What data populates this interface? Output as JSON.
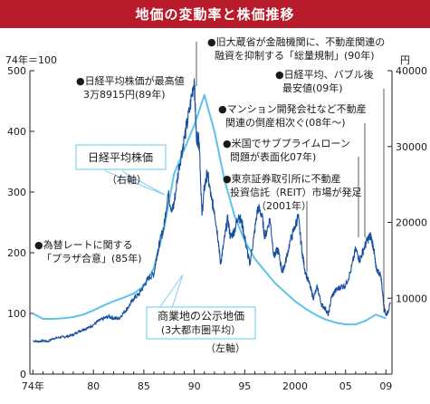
{
  "title": "地価の変動率と株価推移",
  "chart_data": {
    "type": "line",
    "left_axis_label": "74年＝100",
    "right_axis_label": "円",
    "left_ylim": [
      0,
      500
    ],
    "right_ylim": [
      0,
      40000
    ],
    "left_ticks": [
      "0",
      "100",
      "200",
      "300",
      "400",
      "500"
    ],
    "right_ticks": [
      "10000",
      "20000",
      "30000",
      "40000"
    ],
    "x_ticks": [
      "74年",
      "80",
      "85",
      "90",
      "95",
      "2000",
      "05",
      "09"
    ],
    "x_tick_years": [
      1974,
      1980,
      1985,
      1990,
      1995,
      2000,
      2005,
      2009
    ],
    "xlim": [
      1973.7,
      2009.6
    ],
    "series": [
      {
        "name": "日経平均株価",
        "axis": "right",
        "color": "#1a4fa0",
        "points": [
          [
            1974.0,
            4400
          ],
          [
            1974.5,
            4300
          ],
          [
            1975.0,
            4400
          ],
          [
            1975.5,
            4300
          ],
          [
            1976.0,
            4700
          ],
          [
            1976.5,
            4800
          ],
          [
            1977.0,
            4900
          ],
          [
            1977.5,
            5000
          ],
          [
            1978.0,
            5200
          ],
          [
            1978.5,
            5600
          ],
          [
            1979.0,
            5900
          ],
          [
            1979.5,
            6100
          ],
          [
            1980.0,
            6500
          ],
          [
            1980.5,
            7000
          ],
          [
            1981.0,
            7300
          ],
          [
            1981.5,
            7600
          ],
          [
            1982.0,
            7400
          ],
          [
            1982.5,
            7300
          ],
          [
            1983.0,
            8100
          ],
          [
            1983.5,
            8900
          ],
          [
            1984.0,
            10000
          ],
          [
            1984.5,
            10500
          ],
          [
            1985.0,
            11700
          ],
          [
            1985.5,
            12700
          ],
          [
            1986.0,
            13200
          ],
          [
            1986.3,
            15800
          ],
          [
            1986.6,
            17500
          ],
          [
            1987.0,
            19500
          ],
          [
            1987.4,
            23800
          ],
          [
            1987.8,
            21500
          ],
          [
            1988.0,
            22500
          ],
          [
            1988.5,
            27500
          ],
          [
            1989.0,
            31000
          ],
          [
            1989.5,
            34500
          ],
          [
            1989.99,
            38915
          ],
          [
            1990.2,
            31500
          ],
          [
            1990.5,
            30500
          ],
          [
            1990.75,
            21000
          ],
          [
            1991.0,
            24500
          ],
          [
            1991.3,
            26500
          ],
          [
            1991.7,
            23000
          ],
          [
            1992.0,
            21500
          ],
          [
            1992.4,
            17500
          ],
          [
            1992.6,
            14500
          ],
          [
            1992.9,
            17000
          ],
          [
            1993.3,
            20500
          ],
          [
            1993.6,
            18000
          ],
          [
            1994.0,
            19000
          ],
          [
            1994.4,
            21000
          ],
          [
            1994.8,
            19500
          ],
          [
            1995.2,
            16500
          ],
          [
            1995.5,
            14500
          ],
          [
            1995.9,
            18000
          ],
          [
            1996.3,
            22000
          ],
          [
            1996.7,
            21000
          ],
          [
            1997.0,
            18000
          ],
          [
            1997.5,
            20500
          ],
          [
            1997.9,
            15500
          ],
          [
            1998.3,
            16500
          ],
          [
            1998.7,
            13500
          ],
          [
            1999.0,
            14500
          ],
          [
            1999.5,
            17500
          ],
          [
            2000.0,
            19500
          ],
          [
            2000.3,
            20800
          ],
          [
            2000.7,
            16000
          ],
          [
            2001.0,
            13500
          ],
          [
            2001.5,
            11500
          ],
          [
            2001.8,
            10000
          ],
          [
            2002.2,
            11500
          ],
          [
            2002.6,
            9200
          ],
          [
            2003.0,
            8600
          ],
          [
            2003.3,
            7800
          ],
          [
            2003.6,
            10200
          ],
          [
            2004.0,
            11000
          ],
          [
            2004.5,
            11500
          ],
          [
            2005.0,
            11700
          ],
          [
            2005.5,
            13500
          ],
          [
            2006.0,
            16500
          ],
          [
            2006.4,
            15000
          ],
          [
            2006.8,
            16500
          ],
          [
            2007.2,
            17800
          ],
          [
            2007.5,
            18200
          ],
          [
            2007.8,
            16500
          ],
          [
            2008.0,
            14000
          ],
          [
            2008.5,
            13000
          ],
          [
            2008.8,
            9000
          ],
          [
            2009.0,
            7800
          ],
          [
            2009.2,
            8200
          ],
          [
            2009.45,
            9300
          ]
        ]
      },
      {
        "name": "商業地の公示地価",
        "axis": "left",
        "color": "#5cc3ea",
        "points": [
          [
            1974.0,
            100
          ],
          [
            1975.0,
            91
          ],
          [
            1976.0,
            91
          ],
          [
            1977.0,
            92
          ],
          [
            1978.0,
            94
          ],
          [
            1979.0,
            98
          ],
          [
            1980.0,
            105
          ],
          [
            1981.0,
            113
          ],
          [
            1982.0,
            120
          ],
          [
            1983.0,
            126
          ],
          [
            1984.0,
            133
          ],
          [
            1985.0,
            145
          ],
          [
            1986.0,
            175
          ],
          [
            1987.0,
            240
          ],
          [
            1988.0,
            330
          ],
          [
            1989.0,
            370
          ],
          [
            1990.0,
            410
          ],
          [
            1991.0,
            460
          ],
          [
            1992.0,
            400
          ],
          [
            1993.0,
            320
          ],
          [
            1994.0,
            260
          ],
          [
            1995.0,
            220
          ],
          [
            1996.0,
            190
          ],
          [
            1997.0,
            170
          ],
          [
            1998.0,
            150
          ],
          [
            1999.0,
            135
          ],
          [
            2000.0,
            120
          ],
          [
            2001.0,
            108
          ],
          [
            2002.0,
            98
          ],
          [
            2003.0,
            90
          ],
          [
            2004.0,
            85
          ],
          [
            2005.0,
            82
          ],
          [
            2006.0,
            82
          ],
          [
            2007.0,
            88
          ],
          [
            2008.0,
            98
          ],
          [
            2009.0,
            92
          ]
        ]
      }
    ]
  },
  "labels": {
    "nikkei_name": "日経平均株価",
    "nikkei_axis": "（右軸）",
    "land_name": "商業地の公示地価",
    "land_sub": "(3大都市圏平均）",
    "land_axis": "（左軸）"
  },
  "annotations": [
    [
      "●為替レートに関する",
      "「プラザ合意」(85年)"
    ],
    [
      "●日経平均株価が最高値",
      "3万8915円(89年)"
    ],
    [
      "●旧大蔵省が金融機関に、不動産関連の",
      "融資を抑制する「総量規制」(90年)"
    ],
    [
      "●日経平均、バブル後",
      "最安値(09年)"
    ],
    [
      "●マンション開発会社など不動産",
      "関連の倒産相次ぐ(08年～)"
    ],
    [
      "●米国でサブプライムローン",
      "問題が表面化07年)"
    ],
    [
      "●東京証券取引所に不動産",
      "投資信託（REIT）市場が発足",
      "（2001年）"
    ]
  ]
}
